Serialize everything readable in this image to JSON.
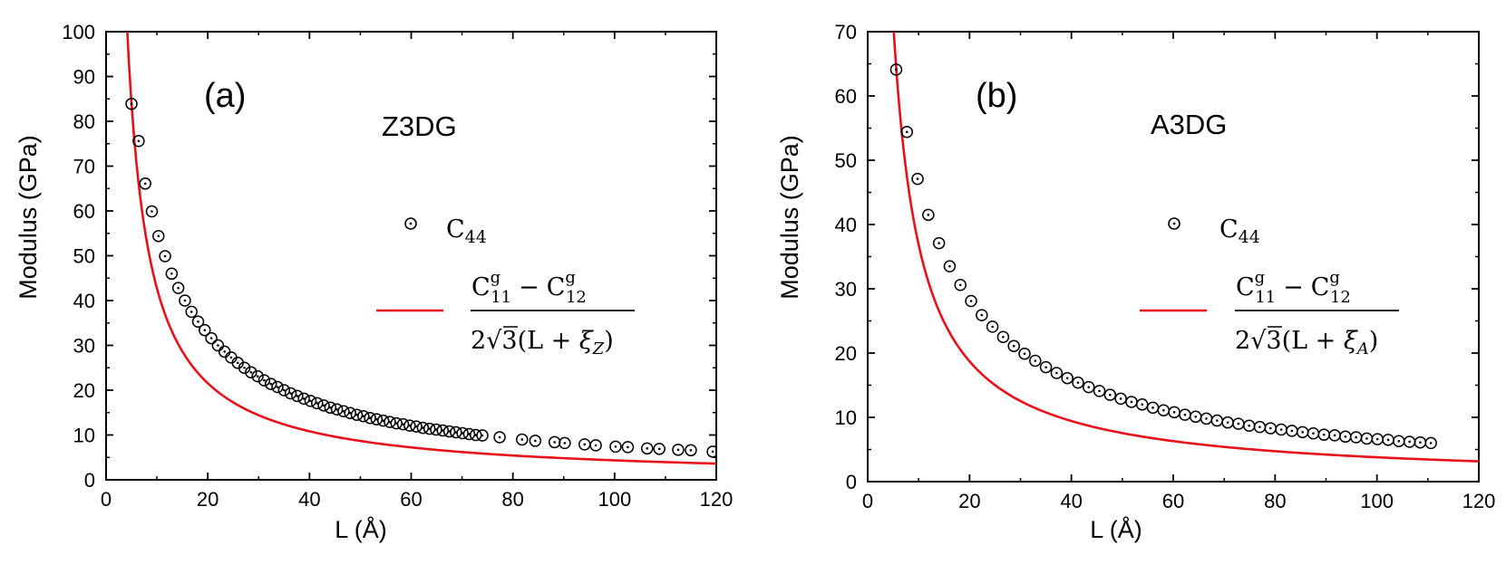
{
  "chart_data": [
    {
      "type": "scatter",
      "panel_label": "(a)",
      "title": "Z3DG",
      "xlabel": "L (Å)",
      "ylabel": "Modulus (GPa)",
      "xlim": [
        0,
        120
      ],
      "ylim": [
        0,
        100
      ],
      "xticks": [
        0,
        20,
        40,
        60,
        80,
        100,
        120
      ],
      "yticks": [
        0,
        10,
        20,
        30,
        40,
        50,
        60,
        70,
        80,
        90,
        100
      ],
      "series": [
        {
          "name": "C44",
          "kind": "scatter",
          "marker": "circle-dot",
          "x": [
            5.0,
            6.4,
            7.7,
            9.0,
            10.3,
            11.6,
            12.9,
            14.2,
            15.5,
            16.8,
            18.1,
            19.4,
            20.7,
            22.0,
            23.3,
            24.6,
            25.9,
            27.2,
            28.5,
            29.8,
            31.1,
            32.4,
            33.7,
            35.0,
            36.3,
            37.6,
            38.9,
            40.2,
            41.5,
            42.8,
            44.1,
            45.4,
            46.7,
            48.0,
            49.3,
            50.6,
            51.9,
            53.2,
            54.5,
            55.8,
            57.1,
            58.4,
            59.7,
            61.0,
            62.3,
            63.6,
            64.9,
            66.2,
            67.5,
            68.8,
            70.1,
            71.4,
            72.7,
            74.0,
            77.4,
            81.8,
            84.4,
            88.2,
            90.2,
            94.1,
            96.3,
            100.2,
            102.6,
            106.4,
            108.8,
            112.5,
            115.0,
            119.3
          ],
          "y": [
            83.9,
            75.6,
            66.1,
            59.9,
            54.4,
            49.9,
            46.0,
            42.8,
            40.0,
            37.5,
            35.3,
            33.4,
            31.6,
            30.0,
            28.6,
            27.3,
            26.1,
            25.0,
            24.0,
            23.1,
            22.2,
            21.4,
            20.7,
            20.0,
            19.3,
            18.7,
            18.1,
            17.6,
            17.1,
            16.6,
            16.1,
            15.7,
            15.3,
            14.9,
            14.5,
            14.2,
            13.8,
            13.5,
            13.2,
            12.9,
            12.6,
            12.4,
            12.1,
            11.9,
            11.6,
            11.4,
            11.2,
            11.0,
            10.8,
            10.6,
            10.4,
            10.2,
            10.0,
            9.9,
            9.5,
            9.0,
            8.7,
            8.4,
            8.2,
            7.9,
            7.7,
            7.4,
            7.3,
            7.0,
            6.9,
            6.7,
            6.6,
            6.3
          ]
        },
        {
          "name": "(C11g − C12g) / (2√3 (L + ξZ))",
          "kind": "line",
          "color": "#e8101a",
          "model": "a/(x+b)",
          "a": 435,
          "b": 0.183,
          "x_range": [
            4.0,
            120
          ]
        }
      ],
      "legend": {
        "scatter_label": {
          "base": "C",
          "sub": "44"
        },
        "fit_label": {
          "num_c": "C",
          "num_sup_1": "g",
          "num_sub_1": "11",
          "minus": "−",
          "num_sup_2": "g",
          "num_sub_2": "12",
          "den_prefix": "2",
          "den_root": "3",
          "den_open": "(L + ",
          "den_xi": "ξ",
          "den_xi_sub": "Z",
          "den_close": ")"
        }
      }
    },
    {
      "type": "scatter",
      "panel_label": "(b)",
      "title": "A3DG",
      "xlabel": "L (Å)",
      "ylabel": "Modulus (GPa)",
      "xlim": [
        0,
        120
      ],
      "ylim": [
        0,
        70
      ],
      "xticks": [
        0,
        20,
        40,
        60,
        80,
        100,
        120
      ],
      "yticks": [
        0,
        10,
        20,
        30,
        40,
        50,
        60,
        70
      ],
      "series": [
        {
          "name": "C44",
          "kind": "scatter",
          "marker": "circle-dot",
          "x": [
            5.6,
            7.7,
            9.8,
            11.9,
            14.0,
            16.1,
            18.2,
            20.3,
            22.4,
            24.5,
            26.6,
            28.7,
            30.8,
            32.9,
            35.0,
            37.1,
            39.2,
            41.3,
            43.4,
            45.5,
            47.6,
            49.7,
            51.8,
            53.9,
            56.0,
            58.1,
            60.2,
            62.3,
            64.4,
            66.5,
            68.6,
            70.7,
            72.8,
            74.9,
            77.0,
            79.1,
            81.2,
            83.3,
            85.4,
            87.5,
            89.6,
            91.7,
            93.8,
            95.9,
            98.0,
            100.1,
            102.2,
            104.3,
            106.4,
            108.5,
            110.6
          ],
          "y": [
            64.1,
            54.4,
            47.1,
            41.5,
            37.1,
            33.5,
            30.6,
            28.1,
            25.9,
            24.1,
            22.5,
            21.1,
            19.9,
            18.8,
            17.8,
            16.9,
            16.1,
            15.4,
            14.7,
            14.1,
            13.5,
            12.9,
            12.4,
            12.0,
            11.5,
            11.1,
            10.8,
            10.4,
            10.1,
            9.8,
            9.5,
            9.2,
            9.0,
            8.7,
            8.5,
            8.3,
            8.1,
            7.9,
            7.7,
            7.5,
            7.3,
            7.2,
            7.0,
            6.9,
            6.7,
            6.6,
            6.5,
            6.3,
            6.2,
            6.1,
            6.0
          ]
        },
        {
          "name": "(C11g − C12g) / (2√3 (L + ξA))",
          "kind": "line",
          "color": "#e8101a",
          "model": "a/(x+b)",
          "a": 380,
          "b": 0.31,
          "x_range": [
            4.8,
            120
          ]
        }
      ],
      "legend": {
        "scatter_label": {
          "base": "C",
          "sub": "44"
        },
        "fit_label": {
          "num_c": "C",
          "num_sup_1": "g",
          "num_sub_1": "11",
          "minus": "−",
          "num_sup_2": "g",
          "num_sub_2": "12",
          "den_prefix": "2",
          "den_root": "3",
          "den_open": "(L + ",
          "den_xi": "ξ",
          "den_xi_sub": "A",
          "den_close": ")"
        }
      }
    }
  ]
}
